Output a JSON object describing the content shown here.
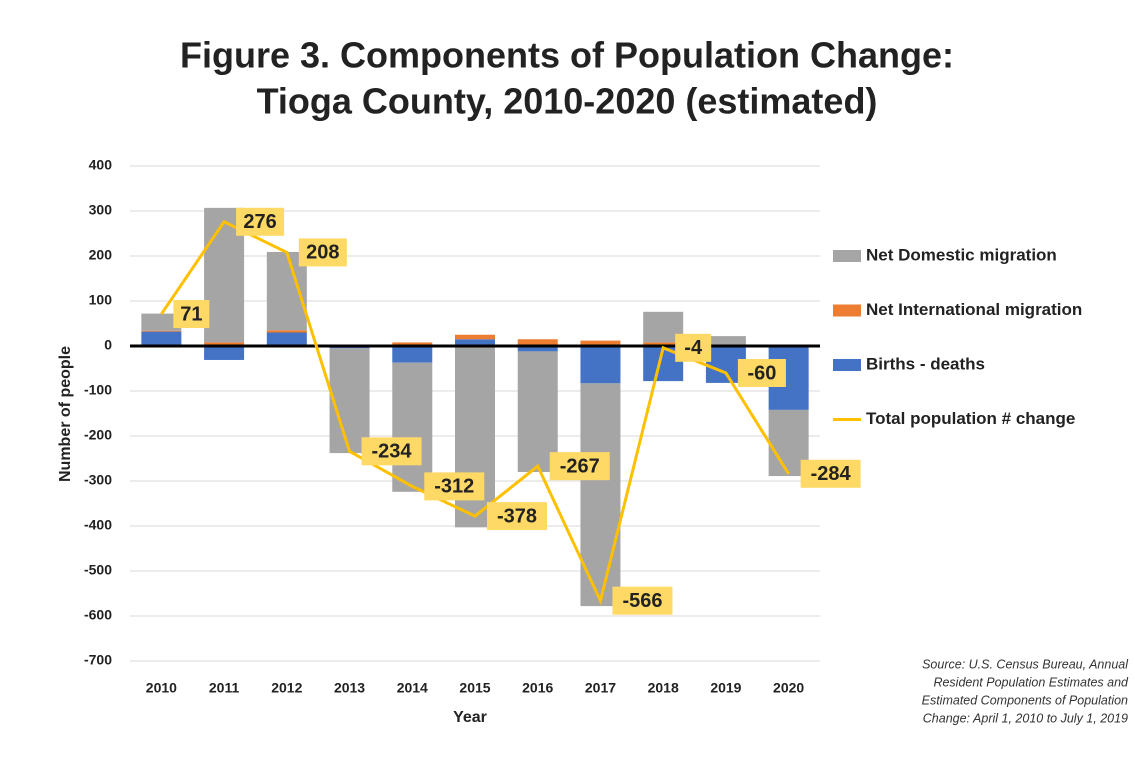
{
  "chart_data": {
    "type": "bar",
    "title": [
      "Figure 3. Components of Population Change:",
      "Tioga County, 2010-2020 (estimated)"
    ],
    "xlabel": "Year",
    "ylabel": "Number of people",
    "source": [
      "Source: U.S. Census Bureau, Annual",
      "Resident Population Estimates and",
      "Estimated Components of Population",
      "Change: April 1, 2010 to July 1, 2019"
    ],
    "categories": [
      "2010",
      "2011",
      "2012",
      "2013",
      "2014",
      "2015",
      "2016",
      "2017",
      "2018",
      "2019",
      "2020"
    ],
    "stacked": true,
    "grid": true,
    "legend": "right",
    "ylim": [
      -700,
      400
    ],
    "yticks": [
      -700,
      -600,
      -500,
      -400,
      -300,
      -200,
      -100,
      0,
      100,
      200,
      300,
      400
    ],
    "series": [
      {
        "name": "Net Domestic migration",
        "type": "bar",
        "color": "#a5a5a5",
        "values": [
          38,
          299,
          174,
          -233,
          -287,
          -403,
          -268,
          -495,
          68,
          19,
          -147
        ]
      },
      {
        "name": "Net International migration",
        "type": "bar",
        "color": "#ed7d31",
        "values": [
          2,
          8,
          5,
          2,
          8,
          10,
          15,
          12,
          8,
          3,
          2
        ]
      },
      {
        "name": "Births - deaths",
        "type": "bar",
        "color": "#4472c4",
        "values": [
          32,
          -31,
          30,
          -5,
          -37,
          15,
          -12,
          -83,
          -78,
          -82,
          -142
        ]
      },
      {
        "name": "Total population # change",
        "type": "line",
        "color": "#ffc000",
        "label_color": "#ffd966",
        "values": [
          71,
          276,
          208,
          -234,
          -312,
          -378,
          -267,
          -566,
          -4,
          -60,
          -284
        ]
      }
    ]
  }
}
